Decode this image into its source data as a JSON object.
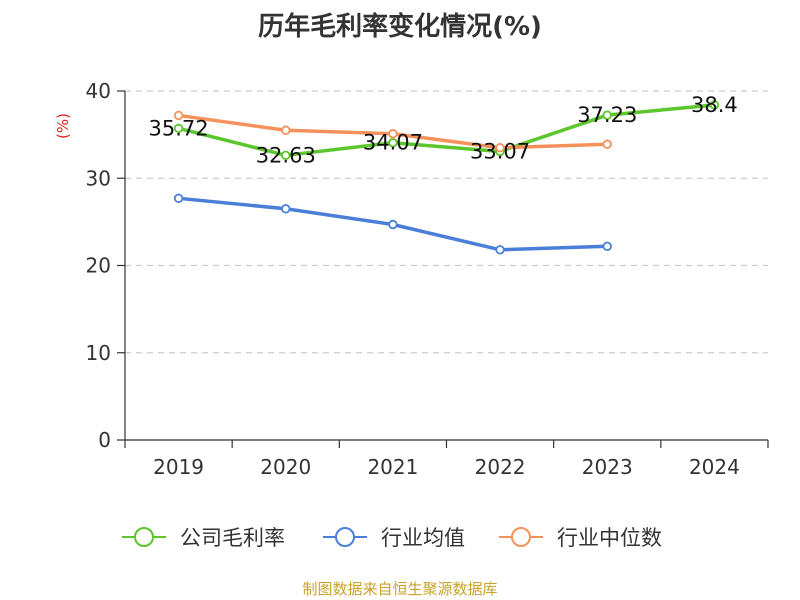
{
  "chart_data": {
    "type": "line",
    "title": "历年毛利率变化情况(%)",
    "ylabel": "(%)",
    "xlabel": "",
    "categories": [
      "2019",
      "2020",
      "2021",
      "2022",
      "2023",
      "2024"
    ],
    "ylim": [
      0,
      40
    ],
    "yticks": [
      0,
      10,
      20,
      30,
      40
    ],
    "grid": true,
    "legend_position": "bottom",
    "series": [
      {
        "name": "公司毛利率",
        "color": "#5cc62d",
        "values": [
          35.72,
          32.63,
          34.07,
          33.07,
          37.23,
          38.4
        ],
        "show_labels": true
      },
      {
        "name": "行业均值",
        "color": "#4a7fd9",
        "values": [
          27.7,
          26.5,
          24.7,
          21.8,
          22.2,
          null
        ],
        "show_labels": false
      },
      {
        "name": "行业中位数",
        "color": "#f5925b",
        "values": [
          37.2,
          35.5,
          35.1,
          33.5,
          33.9,
          null
        ],
        "show_labels": false
      }
    ]
  },
  "source": "制图数据来自恒生聚源数据库",
  "colors": {
    "axis": "#333333",
    "grid": "#cccccc",
    "ylabel": "#e02020",
    "source": "#c9a227"
  }
}
